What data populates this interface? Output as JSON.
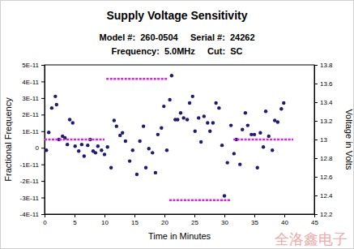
{
  "chart_data": {
    "type": "scatter",
    "title": "Supply Voltage Sensitivity",
    "subtitle": [
      "Model #:  260-0504     Serial #:  24262",
      "Frequency:  5.0MHz     Cut:  SC"
    ],
    "x_label": "Time in Minutes",
    "y_label": "Fractional Frequency",
    "y2_label": "Voltage in Volts",
    "annotations": [
      "全洛鑫电子"
    ],
    "xlim": [
      0,
      45
    ],
    "xticks": [
      0,
      5,
      10,
      15,
      20,
      25,
      30,
      35,
      40,
      45
    ],
    "ylim": [
      -4e-11,
      5e-11
    ],
    "yticks": [
      {
        "value": -4e-11,
        "label": "-4E-11"
      },
      {
        "value": -3e-11,
        "label": "-3E-11"
      },
      {
        "value": -2e-11,
        "label": "-2E-11"
      },
      {
        "value": -1e-11,
        "label": "-1E-11"
      },
      0,
      {
        "value": 1e-11,
        "label": "1E-11"
      },
      {
        "value": 2e-11,
        "label": "2E-11"
      },
      {
        "value": 3e-11,
        "label": "3E-11"
      },
      {
        "value": 4e-11,
        "label": "4E-11"
      },
      {
        "value": 5e-11,
        "label": "5E-11"
      }
    ],
    "y2lim": [
      12.2,
      13.8
    ],
    "y2ticks": [
      12.2,
      12.4,
      12.6,
      12.8,
      13,
      13.2,
      13.4,
      13.6,
      13.8
    ],
    "grid": false,
    "series": [
      {
        "type": "scatter",
        "color": "#1c1c78",
        "marker": "circle",
        "x": [
          0.3,
          0.7,
          1.2,
          1.8,
          2.0,
          2.4,
          3.0,
          3.4,
          3.8,
          4.2,
          4.7,
          5.1,
          5.7,
          6.2,
          6.6,
          7.2,
          7.6,
          8.1,
          8.5,
          8.9,
          9.5,
          10.0,
          10.5,
          11.1,
          11.6,
          12.0,
          12.6,
          13.0,
          13.5,
          14.2,
          14.7,
          15.4,
          15.9,
          16.5,
          16.9,
          17.4,
          18.0,
          18.5,
          18.9,
          19.5,
          19.9,
          20.4,
          20.9,
          21.2,
          21.8,
          22.2,
          22.7,
          23.2,
          23.8,
          24.2,
          24.7,
          25.1,
          25.7,
          26.1,
          26.6,
          27.2,
          27.6,
          28.1,
          28.6,
          29.1,
          29.6,
          30.0,
          30.5,
          31.1,
          31.6,
          32.0,
          32.6,
          33.0,
          33.5,
          33.9,
          34.5,
          35.0,
          35.5,
          36.0,
          36.5,
          36.9,
          37.4,
          38.0,
          38.4,
          38.9,
          39.5,
          39.9
        ],
        "values": [
          -1.5e-12,
          9.3e-12,
          2.4e-11,
          3.1e-11,
          2.6e-11,
          5e-12,
          7e-12,
          6e-12,
          2e-12,
          1.7e-11,
          1.5e-11,
          1e-12,
          -2e-12,
          2e-12,
          -5e-12,
          1.5e-12,
          5e-12,
          -2e-12,
          -3e-12,
          1e-12,
          -1.5e-12,
          -4e-12,
          5e-13,
          -1.2e-11,
          1.65e-11,
          1.3e-11,
          7.5e-12,
          9e-12,
          4e-12,
          -8e-12,
          -1.5e-12,
          -1.6e-11,
          4e-12,
          1.3e-11,
          -1.2e-11,
          -5e-13,
          -3e-12,
          -1.5e-11,
          8e-12,
          1.2e-11,
          2.5e-11,
          -1.5e-12,
          2.9e-11,
          4.35e-11,
          1.7e-11,
          1.7e-11,
          2.1e-11,
          1.8e-11,
          1.7e-11,
          2.7e-11,
          3.1e-11,
          1e-11,
          1.8e-11,
          3.5e-12,
          1.9e-11,
          1.5e-11,
          1e-11,
          1.5e-11,
          2.7e-11,
          2.4e-11,
          1.5e-12,
          -2.9e-11,
          -9e-12,
          1.35e-11,
          -3.5e-12,
          5e-12,
          -1e-11,
          1.1e-11,
          2.1e-11,
          1.35e-11,
          8e-12,
          8e-12,
          -1.2e-11,
          9e-12,
          5e-13,
          2.2e-11,
          7e-12,
          -1.5e-12,
          1.65e-11,
          1.55e-11,
          2.35e-11,
          2.7e-11
        ]
      },
      {
        "type": "line",
        "axis": "y2",
        "color": "#e020e0",
        "line_style": "dashed",
        "x": [
          0,
          10,
          null,
          10.3,
          20.5,
          null,
          20.8,
          31,
          null,
          31.5,
          41.5
        ],
        "values": [
          13,
          13,
          null,
          13.65,
          13.65,
          null,
          12.35,
          12.35,
          null,
          13,
          13
        ]
      }
    ]
  }
}
